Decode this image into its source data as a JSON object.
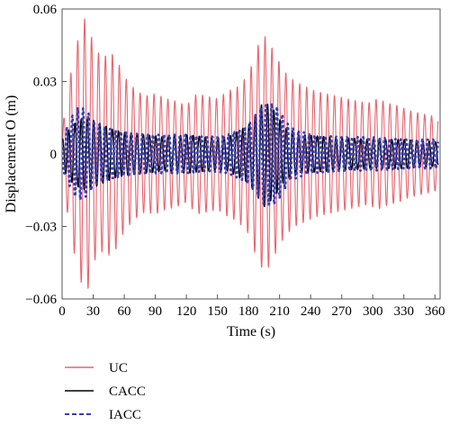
{
  "chart_data": {
    "type": "line",
    "title": "",
    "xlabel": "Time (s)",
    "ylabel": "Displacement O (m)",
    "xlim": [
      0,
      365
    ],
    "ylim": [
      -0.06,
      0.06
    ],
    "xticks": [
      0,
      30,
      60,
      90,
      120,
      150,
      180,
      210,
      240,
      270,
      300,
      330,
      360
    ],
    "xtick_labels": [
      "0",
      "30",
      "60",
      "90",
      "120",
      "150",
      "180",
      "210",
      "240",
      "270",
      "300",
      "330",
      "360"
    ],
    "yticks": [
      0.06,
      0.03,
      0,
      -0.03,
      -0.06
    ],
    "ytick_labels": [
      "0.06",
      "0.03",
      "0",
      "−0.03",
      "−0.06"
    ],
    "grid": false,
    "legend_position": "bottom-left",
    "series": [
      {
        "name": "UC",
        "color": "#e8646e",
        "style": "solid",
        "envelope": [
          [
            0,
            0.01
          ],
          [
            5,
            0.024
          ],
          [
            10,
            0.038
          ],
          [
            15,
            0.047
          ],
          [
            20,
            0.056
          ],
          [
            25,
            0.056
          ],
          [
            30,
            0.045
          ],
          [
            35,
            0.042
          ],
          [
            40,
            0.04
          ],
          [
            45,
            0.042
          ],
          [
            50,
            0.041
          ],
          [
            55,
            0.037
          ],
          [
            60,
            0.032
          ],
          [
            70,
            0.027
          ],
          [
            80,
            0.024
          ],
          [
            90,
            0.025
          ],
          [
            100,
            0.023
          ],
          [
            110,
            0.022
          ],
          [
            120,
            0.02
          ],
          [
            130,
            0.025
          ],
          [
            140,
            0.024
          ],
          [
            150,
            0.023
          ],
          [
            160,
            0.026
          ],
          [
            170,
            0.028
          ],
          [
            180,
            0.033
          ],
          [
            190,
            0.046
          ],
          [
            197,
            0.049
          ],
          [
            205,
            0.042
          ],
          [
            215,
            0.034
          ],
          [
            225,
            0.03
          ],
          [
            235,
            0.028
          ],
          [
            245,
            0.026
          ],
          [
            255,
            0.025
          ],
          [
            265,
            0.024
          ],
          [
            275,
            0.023
          ],
          [
            285,
            0.022
          ],
          [
            295,
            0.021
          ],
          [
            305,
            0.023
          ],
          [
            315,
            0.021
          ],
          [
            325,
            0.02
          ],
          [
            335,
            0.018
          ],
          [
            345,
            0.017
          ],
          [
            355,
            0.016
          ],
          [
            363,
            0.015
          ]
        ],
        "period": 6.7
      },
      {
        "name": "CACC",
        "color": "#000000",
        "style": "solid",
        "envelope": [
          [
            0,
            0.006
          ],
          [
            10,
            0.012
          ],
          [
            20,
            0.015
          ],
          [
            30,
            0.014
          ],
          [
            40,
            0.012
          ],
          [
            50,
            0.01
          ],
          [
            60,
            0.009
          ],
          [
            80,
            0.008
          ],
          [
            100,
            0.007
          ],
          [
            120,
            0.008
          ],
          [
            140,
            0.007
          ],
          [
            160,
            0.007
          ],
          [
            180,
            0.012
          ],
          [
            195,
            0.022
          ],
          [
            205,
            0.018
          ],
          [
            215,
            0.011
          ],
          [
            230,
            0.008
          ],
          [
            260,
            0.007
          ],
          [
            300,
            0.006
          ],
          [
            330,
            0.006
          ],
          [
            363,
            0.005
          ]
        ],
        "period": 6.0
      },
      {
        "name": "IACC",
        "color": "#3340b8",
        "style": "dashed",
        "envelope": [
          [
            0,
            0.006
          ],
          [
            5,
            0.011
          ],
          [
            10,
            0.016
          ],
          [
            15,
            0.019
          ],
          [
            20,
            0.019
          ],
          [
            25,
            0.017
          ],
          [
            30,
            0.014
          ],
          [
            40,
            0.011
          ],
          [
            50,
            0.01
          ],
          [
            60,
            0.009
          ],
          [
            80,
            0.008
          ],
          [
            100,
            0.008
          ],
          [
            120,
            0.008
          ],
          [
            140,
            0.007
          ],
          [
            160,
            0.008
          ],
          [
            180,
            0.012
          ],
          [
            188,
            0.017
          ],
          [
            195,
            0.021
          ],
          [
            205,
            0.021
          ],
          [
            212,
            0.017
          ],
          [
            220,
            0.011
          ],
          [
            240,
            0.008
          ],
          [
            270,
            0.007
          ],
          [
            300,
            0.007
          ],
          [
            330,
            0.006
          ],
          [
            363,
            0.006
          ]
        ],
        "period": 5.2
      }
    ]
  }
}
